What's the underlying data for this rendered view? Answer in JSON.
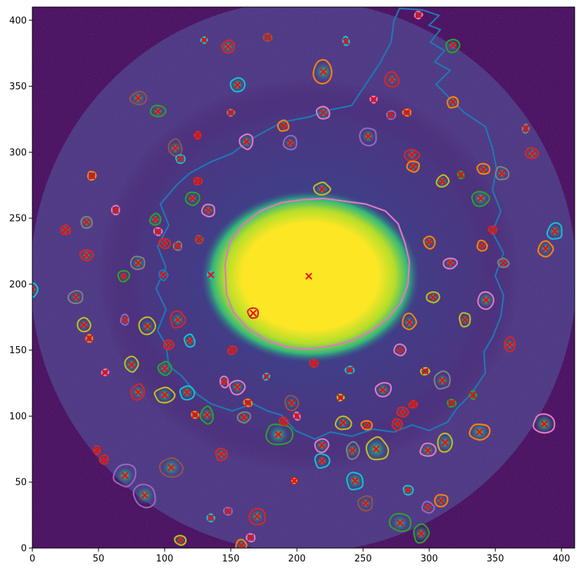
{
  "chart_data": {
    "type": "heatmap",
    "title": "",
    "xlabel": "",
    "ylabel": "",
    "xlim": [
      0,
      410
    ],
    "ylim": [
      0,
      410
    ],
    "xticks": [
      0,
      50,
      100,
      150,
      200,
      250,
      300,
      350,
      400
    ],
    "yticks": [
      0,
      50,
      100,
      150,
      200,
      250,
      300,
      350,
      400
    ],
    "colormap": "viridis",
    "background_color": "#440154",
    "grid": false,
    "core": {
      "center": [
        209,
        206
      ],
      "marker": "x",
      "marker_color": "#ff0000"
    },
    "sources": [
      {
        "x": 209,
        "y": 206,
        "r": 18,
        "color": "#e377c2"
      },
      {
        "x": 285,
        "y": 171,
        "r": 6,
        "color": "#ff7f0e"
      },
      {
        "x": 260,
        "y": 75,
        "r": 10,
        "color": "#bcbd22"
      },
      {
        "x": 186,
        "y": 86,
        "r": 9,
        "color": "#2ca02c"
      },
      {
        "x": 85,
        "y": 40,
        "r": 8,
        "color": "#9467bd"
      },
      {
        "x": 105,
        "y": 61,
        "r": 8,
        "color": "#8c564b"
      },
      {
        "x": 339,
        "y": 265,
        "r": 7,
        "color": "#2ca02c"
      },
      {
        "x": 387,
        "y": 94,
        "r": 9,
        "color": "#e377c2"
      },
      {
        "x": 220,
        "y": 361,
        "r": 8,
        "color": "#ff7f0e"
      },
      {
        "x": 155,
        "y": 351,
        "r": 6,
        "color": "#17becf"
      },
      {
        "x": 148,
        "y": 380,
        "r": 6,
        "color": "#d62728"
      },
      {
        "x": 318,
        "y": 381,
        "r": 5,
        "color": "#2ca02c"
      },
      {
        "x": 80,
        "y": 341,
        "r": 6,
        "color": "#8c564b"
      },
      {
        "x": 95,
        "y": 331,
        "r": 5,
        "color": "#2ca02c"
      },
      {
        "x": 272,
        "y": 355,
        "r": 5,
        "color": "#d62728"
      },
      {
        "x": 318,
        "y": 338,
        "r": 5,
        "color": "#ff7f0e"
      },
      {
        "x": 220,
        "y": 330,
        "r": 6,
        "color": "#e377c2"
      },
      {
        "x": 254,
        "y": 312,
        "r": 6,
        "color": "#9467bd"
      },
      {
        "x": 190,
        "y": 320,
        "r": 4,
        "color": "#ff7f0e"
      },
      {
        "x": 195,
        "y": 307,
        "r": 5,
        "color": "#9467bd"
      },
      {
        "x": 162,
        "y": 308,
        "r": 6,
        "color": "#e377c2"
      },
      {
        "x": 108,
        "y": 303,
        "r": 6,
        "color": "#8c564b"
      },
      {
        "x": 112,
        "y": 295,
        "r": 4,
        "color": "#17becf"
      },
      {
        "x": 219,
        "y": 272,
        "r": 6,
        "color": "#bcbd22"
      },
      {
        "x": 287,
        "y": 298,
        "r": 5,
        "color": "#d62728"
      },
      {
        "x": 288,
        "y": 289,
        "r": 5,
        "color": "#ff7f0e"
      },
      {
        "x": 310,
        "y": 278,
        "r": 5,
        "color": "#bcbd22"
      },
      {
        "x": 341,
        "y": 287,
        "r": 5,
        "color": "#ff7f0e"
      },
      {
        "x": 378,
        "y": 299,
        "r": 5,
        "color": "#d62728"
      },
      {
        "x": 355,
        "y": 284,
        "r": 5,
        "color": "#7f7f7f"
      },
      {
        "x": 395,
        "y": 240,
        "r": 6,
        "color": "#17becf"
      },
      {
        "x": 388,
        "y": 227,
        "r": 6,
        "color": "#ff7f0e"
      },
      {
        "x": 300,
        "y": 232,
        "r": 5,
        "color": "#ff7f0e"
      },
      {
        "x": 340,
        "y": 229,
        "r": 4,
        "color": "#ff7f0e"
      },
      {
        "x": 316,
        "y": 216,
        "r": 5,
        "color": "#e377c2"
      },
      {
        "x": 343,
        "y": 188,
        "r": 7,
        "color": "#e377c2"
      },
      {
        "x": 303,
        "y": 190,
        "r": 5,
        "color": "#bcbd22"
      },
      {
        "x": 327,
        "y": 173,
        "r": 5,
        "color": "#bcbd22"
      },
      {
        "x": 361,
        "y": 154,
        "r": 5,
        "color": "#d62728"
      },
      {
        "x": 278,
        "y": 150,
        "r": 4,
        "color": "#e377c2"
      },
      {
        "x": 310,
        "y": 127,
        "r": 6,
        "color": "#7f7f7f"
      },
      {
        "x": 265,
        "y": 120,
        "r": 6,
        "color": "#e377c2"
      },
      {
        "x": 338,
        "y": 88,
        "r": 8,
        "color": "#ff7f0e"
      },
      {
        "x": 312,
        "y": 80,
        "r": 7,
        "color": "#bcbd22"
      },
      {
        "x": 299,
        "y": 74,
        "r": 6,
        "color": "#e377c2"
      },
      {
        "x": 276,
        "y": 94,
        "r": 4,
        "color": "#d62728"
      },
      {
        "x": 280,
        "y": 103,
        "r": 4,
        "color": "#d62728"
      },
      {
        "x": 253,
        "y": 93,
        "r": 4,
        "color": "#ff7f0e"
      },
      {
        "x": 235,
        "y": 95,
        "r": 6,
        "color": "#bcbd22"
      },
      {
        "x": 242,
        "y": 74,
        "r": 6,
        "color": "#7f7f7f"
      },
      {
        "x": 219,
        "y": 78,
        "r": 6,
        "color": "#e377c2"
      },
      {
        "x": 219,
        "y": 66,
        "r": 5,
        "color": "#17becf"
      },
      {
        "x": 244,
        "y": 51,
        "r": 7,
        "color": "#17becf"
      },
      {
        "x": 252,
        "y": 34,
        "r": 5,
        "color": "#8c564b"
      },
      {
        "x": 284,
        "y": 44,
        "r": 4,
        "color": "#17becf"
      },
      {
        "x": 299,
        "y": 31,
        "r": 4,
        "color": "#9467bd"
      },
      {
        "x": 309,
        "y": 36,
        "r": 5,
        "color": "#ff7f0e"
      },
      {
        "x": 278,
        "y": 19,
        "r": 7,
        "color": "#2ca02c"
      },
      {
        "x": 294,
        "y": 11,
        "r": 7,
        "color": "#2ca02c"
      },
      {
        "x": 170,
        "y": 24,
        "r": 6,
        "color": "#d62728"
      },
      {
        "x": 158,
        "y": 2,
        "r": 5,
        "color": "#ff7f0e"
      },
      {
        "x": 112,
        "y": 6,
        "r": 5,
        "color": "#bcbd22"
      },
      {
        "x": 143,
        "y": 71,
        "r": 5,
        "color": "#d62728"
      },
      {
        "x": 132,
        "y": 101,
        "r": 6,
        "color": "#2ca02c"
      },
      {
        "x": 117,
        "y": 118,
        "r": 6,
        "color": "#17becf"
      },
      {
        "x": 100,
        "y": 116,
        "r": 7,
        "color": "#bcbd22"
      },
      {
        "x": 80,
        "y": 118,
        "r": 6,
        "color": "#d62728"
      },
      {
        "x": 100,
        "y": 136,
        "r": 6,
        "color": "#2ca02c"
      },
      {
        "x": 75,
        "y": 139,
        "r": 6,
        "color": "#bcbd22"
      },
      {
        "x": 87,
        "y": 168,
        "r": 6,
        "color": "#bcbd22"
      },
      {
        "x": 70,
        "y": 173,
        "r": 4,
        "color": "#9467bd"
      },
      {
        "x": 39,
        "y": 169,
        "r": 5,
        "color": "#bcbd22"
      },
      {
        "x": 43,
        "y": 159,
        "r": 3,
        "color": "#ff7f0e"
      },
      {
        "x": 33,
        "y": 190,
        "r": 5,
        "color": "#7f7f7f"
      },
      {
        "x": 0,
        "y": 196,
        "r": 5,
        "color": "#17becf"
      },
      {
        "x": 69,
        "y": 206,
        "r": 4,
        "color": "#2ca02c"
      },
      {
        "x": 80,
        "y": 216,
        "r": 6,
        "color": "#7f7f7f"
      },
      {
        "x": 41,
        "y": 222,
        "r": 5,
        "color": "#d62728"
      },
      {
        "x": 41,
        "y": 247,
        "r": 5,
        "color": "#7f7f7f"
      },
      {
        "x": 25,
        "y": 241,
        "r": 4,
        "color": "#d62728"
      },
      {
        "x": 93,
        "y": 249,
        "r": 5,
        "color": "#2ca02c"
      },
      {
        "x": 100,
        "y": 231,
        "r": 4,
        "color": "#d62728"
      },
      {
        "x": 99,
        "y": 207,
        "r": 4,
        "color": "#1f77b4"
      },
      {
        "x": 110,
        "y": 173,
        "r": 6,
        "color": "#d62728"
      },
      {
        "x": 103,
        "y": 154,
        "r": 4,
        "color": "#d62728"
      },
      {
        "x": 119,
        "y": 157,
        "r": 5,
        "color": "#17becf"
      },
      {
        "x": 133,
        "y": 256,
        "r": 5,
        "color": "#e377c2"
      },
      {
        "x": 121,
        "y": 265,
        "r": 5,
        "color": "#2ca02c"
      },
      {
        "x": 167,
        "y": 178,
        "r": 4,
        "color": "#d62728"
      },
      {
        "x": 155,
        "y": 122,
        "r": 6,
        "color": "#e377c2"
      },
      {
        "x": 145,
        "y": 126,
        "r": 4,
        "color": "#e377c2"
      },
      {
        "x": 160,
        "y": 99,
        "r": 5,
        "color": "#7f7f7f"
      },
      {
        "x": 196,
        "y": 110,
        "r": 5,
        "color": "#8c564b"
      },
      {
        "x": 70,
        "y": 55,
        "r": 8,
        "color": "#9467bd"
      },
      {
        "x": 45,
        "y": 282,
        "r": 3,
        "color": "#ff7f0e"
      },
      {
        "x": 63,
        "y": 256,
        "r": 3,
        "color": "#e377c2"
      },
      {
        "x": 292,
        "y": 404,
        "r": 3,
        "color": "#e377c2"
      },
      {
        "x": 237,
        "y": 384,
        "r": 3,
        "color": "#17becf"
      },
      {
        "x": 178,
        "y": 387,
        "r": 3,
        "color": "#8c564b"
      },
      {
        "x": 130,
        "y": 385,
        "r": 3,
        "color": "#17becf"
      },
      {
        "x": 373,
        "y": 318,
        "r": 3,
        "color": "#7f7f7f"
      },
      {
        "x": 55,
        "y": 133,
        "r": 3,
        "color": "#e377c2"
      },
      {
        "x": 54,
        "y": 67,
        "r": 3,
        "color": "#d62728"
      },
      {
        "x": 49,
        "y": 74,
        "r": 3,
        "color": "#d62728"
      },
      {
        "x": 198,
        "y": 51,
        "r": 2,
        "color": "#ff7f0e"
      },
      {
        "x": 165,
        "y": 8,
        "r": 3,
        "color": "#e377c2"
      },
      {
        "x": 148,
        "y": 28,
        "r": 3,
        "color": "#9467bd"
      },
      {
        "x": 135,
        "y": 23,
        "r": 3,
        "color": "#17becf"
      },
      {
        "x": 240,
        "y": 135,
        "r": 3,
        "color": "#17becf"
      },
      {
        "x": 258,
        "y": 340,
        "r": 3,
        "color": "#e377c2"
      },
      {
        "x": 271,
        "y": 328,
        "r": 3,
        "color": "#9467bd"
      },
      {
        "x": 356,
        "y": 216,
        "r": 4,
        "color": "#7f7f7f"
      },
      {
        "x": 348,
        "y": 241,
        "r": 3,
        "color": "#d62728"
      },
      {
        "x": 324,
        "y": 283,
        "r": 3,
        "color": "#2ca02c"
      },
      {
        "x": 283,
        "y": 330,
        "r": 3,
        "color": "#ff7f0e"
      },
      {
        "x": 150,
        "y": 330,
        "r": 3,
        "color": "#7f7f7f"
      },
      {
        "x": 125,
        "y": 313,
        "r": 3,
        "color": "#d62728"
      },
      {
        "x": 125,
        "y": 278,
        "r": 3,
        "color": "#d62728"
      },
      {
        "x": 126,
        "y": 234,
        "r": 3,
        "color": "#8c564b"
      },
      {
        "x": 135,
        "y": 207,
        "r": 3,
        "color": "#17becf"
      },
      {
        "x": 151,
        "y": 150,
        "r": 3,
        "color": "#d62728"
      },
      {
        "x": 177,
        "y": 130,
        "r": 3,
        "color": "#17becf"
      },
      {
        "x": 213,
        "y": 140,
        "r": 3,
        "color": "#d62728"
      },
      {
        "x": 233,
        "y": 114,
        "r": 3,
        "color": "#bcbd22"
      },
      {
        "x": 288,
        "y": 109,
        "r": 3,
        "color": "#d62728"
      },
      {
        "x": 297,
        "y": 134,
        "r": 3,
        "color": "#bcbd22"
      },
      {
        "x": 317,
        "y": 110,
        "r": 3,
        "color": "#2ca02c"
      },
      {
        "x": 333,
        "y": 116,
        "r": 3,
        "color": "#2ca02c"
      },
      {
        "x": 163,
        "y": 110,
        "r": 3,
        "color": "#ff7f0e"
      },
      {
        "x": 190,
        "y": 96,
        "r": 3,
        "color": "#d62728"
      },
      {
        "x": 200,
        "y": 100,
        "r": 3,
        "color": "#e377c2"
      },
      {
        "x": 123,
        "y": 101,
        "r": 3,
        "color": "#ff7f0e"
      },
      {
        "x": 110,
        "y": 229,
        "r": 3,
        "color": "#7f7f7f"
      },
      {
        "x": 95,
        "y": 240,
        "r": 3,
        "color": "#e377c2"
      }
    ]
  }
}
